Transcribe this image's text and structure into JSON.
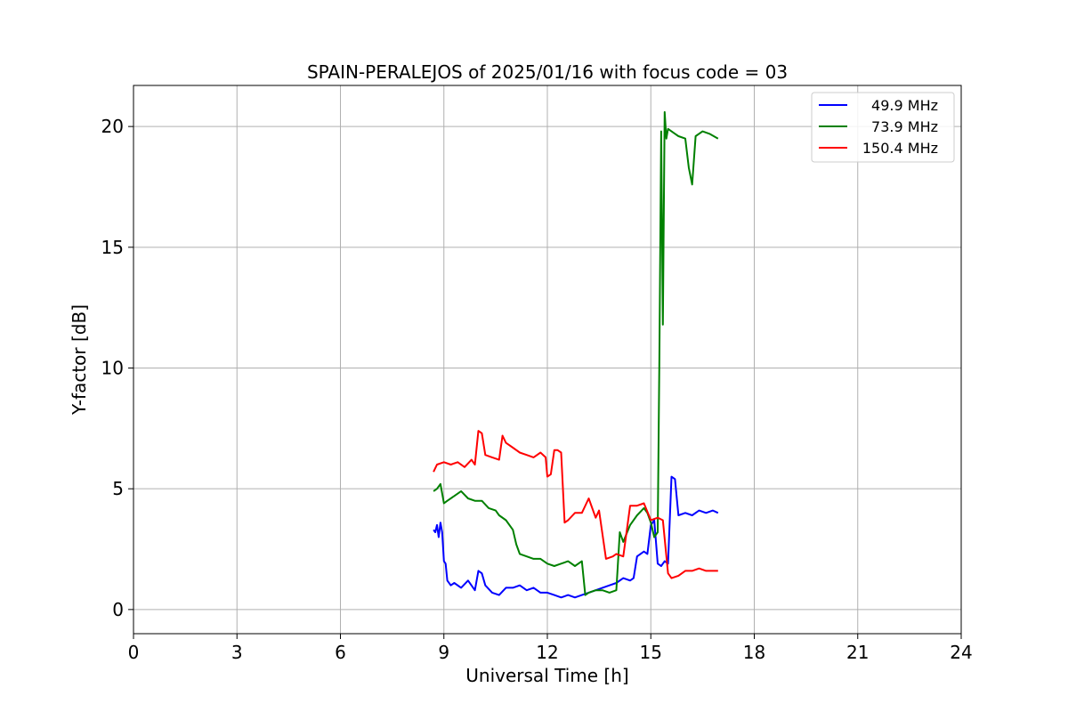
{
  "chart_data": {
    "type": "line",
    "title": "SPAIN-PERALEJOS of 2025/01/16 with focus code = 03",
    "xlabel": "Universal Time [h]",
    "ylabel": "Y-factor [dB]",
    "xlim": [
      0,
      24
    ],
    "ylim": [
      -1,
      21.7
    ],
    "xticks": [
      0,
      3,
      6,
      9,
      12,
      15,
      18,
      21,
      24
    ],
    "yticks": [
      0,
      5,
      10,
      15,
      20
    ],
    "grid": true,
    "legend_position": "top-right",
    "series": [
      {
        "name": "49.9 MHz",
        "color": "#0000ff",
        "x": [
          8.7,
          8.75,
          8.8,
          8.85,
          8.9,
          8.95,
          9.0,
          9.05,
          9.1,
          9.2,
          9.3,
          9.5,
          9.7,
          9.9,
          10.0,
          10.1,
          10.2,
          10.4,
          10.6,
          10.8,
          11.0,
          11.2,
          11.4,
          11.6,
          11.8,
          12.0,
          12.2,
          12.4,
          12.6,
          12.8,
          13.0,
          13.2,
          13.4,
          13.6,
          13.8,
          14.0,
          14.2,
          14.4,
          14.5,
          14.6,
          14.8,
          14.9,
          15.0,
          15.1,
          15.2,
          15.3,
          15.4,
          15.5,
          15.6,
          15.7,
          15.8,
          16.0,
          16.2,
          16.4,
          16.6,
          16.8,
          16.95
        ],
        "y": [
          3.3,
          3.2,
          3.5,
          3.0,
          3.6,
          3.2,
          2.0,
          1.9,
          1.2,
          1.0,
          1.1,
          0.9,
          1.2,
          0.8,
          1.6,
          1.5,
          1.0,
          0.7,
          0.6,
          0.9,
          0.9,
          1.0,
          0.8,
          0.9,
          0.7,
          0.7,
          0.6,
          0.5,
          0.6,
          0.5,
          0.6,
          0.7,
          0.8,
          0.9,
          1.0,
          1.1,
          1.3,
          1.2,
          1.3,
          2.2,
          2.4,
          2.3,
          3.5,
          3.7,
          1.9,
          1.8,
          2.0,
          1.9,
          5.5,
          5.4,
          3.9,
          4.0,
          3.9,
          4.1,
          4.0,
          4.1,
          4.0
        ]
      },
      {
        "name": "73.9 MHz",
        "color": "#008000",
        "x": [
          8.7,
          8.8,
          8.9,
          9.0,
          9.1,
          9.3,
          9.5,
          9.7,
          9.9,
          10.1,
          10.3,
          10.5,
          10.6,
          10.8,
          11.0,
          11.1,
          11.2,
          11.4,
          11.6,
          11.8,
          12.0,
          12.2,
          12.4,
          12.6,
          12.8,
          13.0,
          13.1,
          13.2,
          13.4,
          13.6,
          13.8,
          14.0,
          14.1,
          14.2,
          14.4,
          14.6,
          14.8,
          14.9,
          15.0,
          15.1,
          15.2,
          15.25,
          15.3,
          15.35,
          15.4,
          15.45,
          15.5,
          15.6,
          15.7,
          15.8,
          16.0,
          16.1,
          16.2,
          16.3,
          16.5,
          16.7,
          16.95
        ],
        "y": [
          4.9,
          5.0,
          5.2,
          4.4,
          4.5,
          4.7,
          4.9,
          4.6,
          4.5,
          4.5,
          4.2,
          4.1,
          3.9,
          3.7,
          3.3,
          2.7,
          2.3,
          2.2,
          2.1,
          2.1,
          1.9,
          1.8,
          1.9,
          2.0,
          1.8,
          2.0,
          0.6,
          0.7,
          0.8,
          0.8,
          0.7,
          0.8,
          3.2,
          2.8,
          3.5,
          3.9,
          4.2,
          4.0,
          3.6,
          3.0,
          3.2,
          10.5,
          19.8,
          11.8,
          20.6,
          19.5,
          19.9,
          19.8,
          19.7,
          19.6,
          19.5,
          18.3,
          17.6,
          19.6,
          19.8,
          19.7,
          19.5
        ]
      },
      {
        "name": "150.4 MHz",
        "color": "#ff0000",
        "x": [
          8.7,
          8.8,
          9.0,
          9.2,
          9.4,
          9.6,
          9.8,
          9.9,
          10.0,
          10.1,
          10.2,
          10.4,
          10.6,
          10.7,
          10.8,
          11.0,
          11.2,
          11.4,
          11.6,
          11.8,
          11.95,
          12.0,
          12.1,
          12.2,
          12.3,
          12.4,
          12.5,
          12.6,
          12.8,
          13.0,
          13.2,
          13.4,
          13.5,
          13.7,
          13.9,
          14.0,
          14.2,
          14.4,
          14.6,
          14.8,
          15.0,
          15.2,
          15.35,
          15.5,
          15.6,
          15.8,
          16.0,
          16.2,
          16.4,
          16.6,
          16.8,
          16.95
        ],
        "y": [
          5.7,
          6.0,
          6.1,
          6.0,
          6.1,
          5.9,
          6.2,
          6.0,
          7.4,
          7.3,
          6.4,
          6.3,
          6.2,
          7.2,
          6.9,
          6.7,
          6.5,
          6.4,
          6.3,
          6.5,
          6.3,
          5.5,
          5.6,
          6.6,
          6.6,
          6.5,
          3.6,
          3.7,
          4.0,
          4.0,
          4.6,
          3.8,
          4.1,
          2.1,
          2.2,
          2.3,
          2.2,
          4.3,
          4.3,
          4.4,
          3.7,
          3.8,
          3.7,
          1.5,
          1.3,
          1.4,
          1.6,
          1.6,
          1.7,
          1.6,
          1.6,
          1.6
        ]
      }
    ]
  }
}
